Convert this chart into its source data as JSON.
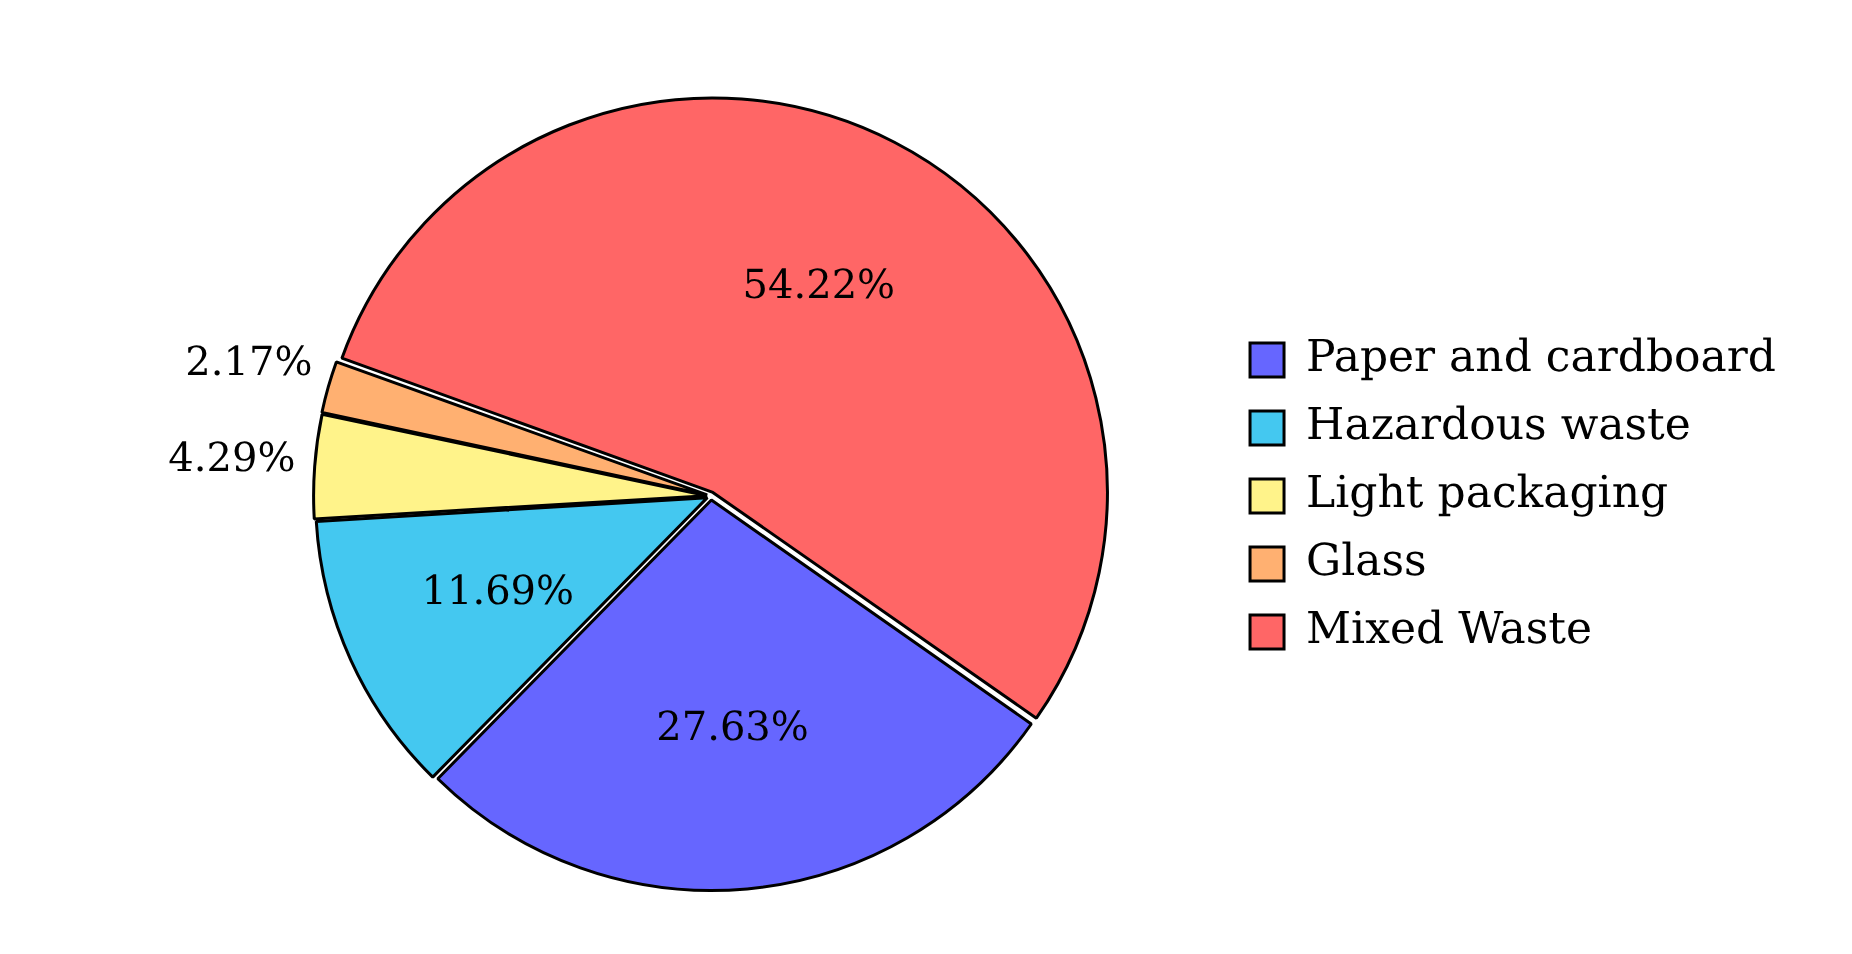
{
  "chart_data": {
    "type": "pie",
    "categories": [
      "Paper and cardboard",
      "Hazardous waste",
      "Light packaging",
      "Glass",
      "Mixed Waste"
    ],
    "values": [
      27.63,
      11.69,
      4.29,
      2.17,
      54.22
    ],
    "value_labels": [
      "27.63%",
      "11.69%",
      "4.29%",
      "2.17%",
      "54.22%"
    ],
    "colors": [
      "#6666ff",
      "#44c8f0",
      "#fff38a",
      "#ffb071",
      "#ff6666"
    ],
    "legend": "right"
  }
}
